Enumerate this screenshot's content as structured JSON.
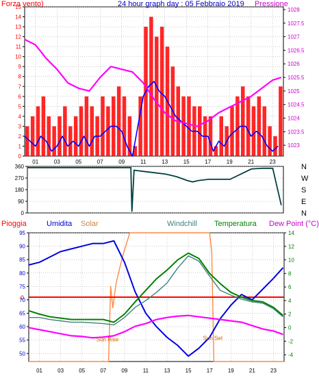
{
  "colors": {
    "wind": "#ff0000",
    "gust_line": "#0000ff",
    "pressure": "#ff00ff",
    "wind_dir": "#004040",
    "rain": "#ff0000",
    "humidity": "#0000dd",
    "solar": "#ff8844",
    "windchill": "#408080",
    "temperature": "#008000",
    "dewpoint": "#ff00ff",
    "zero_line": "#cc0000",
    "grid": "#999999",
    "frame": "#000000"
  },
  "header": {
    "left_label": "Forza vento)",
    "title": "24 hour graph day : 05 Febbraio 2019",
    "right_label": "Pressione"
  },
  "chart_data": [
    {
      "type": "bar",
      "title": "24 hour graph day : 05 Febbraio 2019",
      "x_ticks": [
        "01",
        "03",
        "05",
        "07",
        "09",
        "11",
        "13",
        "15",
        "17",
        "19",
        "21",
        "23"
      ],
      "xlim": [
        0,
        24
      ],
      "left_axis": {
        "label": "Forza vento)",
        "ylim": [
          0,
          15
        ],
        "ticks": [
          0,
          1,
          2,
          3,
          4,
          5,
          6,
          7,
          8,
          9,
          10,
          11,
          12,
          13,
          14,
          15
        ]
      },
      "right_axis": {
        "label": "Pressione",
        "ylim": [
          1022.6,
          1028.1
        ],
        "ticks": [
          1023,
          1023.5,
          1024,
          1024.5,
          1025,
          1025.5,
          1026,
          1026.5,
          1027,
          1027.5,
          1028
        ]
      },
      "series": [
        {
          "type": "bar",
          "axis": "left",
          "color_key": "wind",
          "x": [
            0,
            0.5,
            1,
            1.5,
            2,
            2.5,
            3,
            3.5,
            4,
            4.5,
            5,
            5.5,
            6,
            6.5,
            7,
            7.5,
            8,
            8.5,
            9,
            9.5,
            10,
            10.5,
            11,
            11.5,
            12,
            12.5,
            13,
            13.5,
            14,
            14.5,
            15,
            15.5,
            16,
            16.5,
            17,
            17.5,
            18,
            18.5,
            19,
            19.5,
            20,
            20.5,
            21,
            21.5,
            22,
            22.5,
            23,
            23.5
          ],
          "values": [
            3,
            4,
            5,
            6,
            4,
            3,
            4,
            5,
            3,
            4,
            5,
            6,
            5,
            4,
            6,
            5,
            6,
            7,
            6,
            4,
            1,
            6,
            13,
            14,
            12,
            13,
            11,
            9,
            7,
            6,
            6,
            5,
            5,
            4,
            4,
            1,
            4,
            3,
            5,
            6,
            7,
            6,
            5,
            6,
            5,
            3,
            2,
            7
          ]
        },
        {
          "type": "line",
          "axis": "left",
          "color_key": "gust_line",
          "x": [
            0,
            0.5,
            1,
            1.5,
            2,
            2.5,
            3,
            3.5,
            4,
            4.5,
            5,
            5.5,
            6,
            6.5,
            7,
            7.5,
            8,
            8.5,
            9,
            9.5,
            10,
            10.5,
            11,
            11.5,
            12,
            12.5,
            13,
            13.5,
            14,
            14.5,
            15,
            15.5,
            16,
            16.5,
            17,
            17.5,
            18,
            18.5,
            19,
            19.5,
            20,
            20.5,
            21,
            21.5,
            22,
            22.5,
            23,
            23.5
          ],
          "values": [
            2,
            1.5,
            1,
            2,
            1.5,
            0.5,
            1,
            2,
            1,
            1.5,
            1,
            2,
            1,
            2,
            2,
            2.5,
            3,
            3,
            2.5,
            1,
            0,
            3,
            6,
            7,
            7.5,
            6.5,
            6,
            5,
            4,
            3.5,
            3,
            2.5,
            2.5,
            2,
            2,
            0.5,
            1.5,
            1,
            2,
            2.5,
            3,
            3,
            2,
            2.5,
            2,
            1,
            0.5,
            1
          ]
        },
        {
          "type": "line",
          "axis": "right",
          "color_key": "pressure",
          "x": [
            0,
            1,
            2,
            3,
            4,
            5,
            6,
            7,
            8,
            9,
            10,
            11,
            12,
            13,
            14,
            15,
            16,
            17,
            18,
            19,
            20,
            21,
            22,
            23,
            23.8
          ],
          "values": [
            1026.9,
            1026.7,
            1026.2,
            1025.8,
            1025.3,
            1025.1,
            1025.0,
            1025.5,
            1025.9,
            1025.8,
            1025.7,
            1025.3,
            1024.7,
            1024.2,
            1023.9,
            1023.8,
            1023.7,
            1023.9,
            1024.2,
            1024.4,
            1024.6,
            1024.8,
            1025.1,
            1025.4,
            1025.5
          ]
        }
      ]
    },
    {
      "type": "line",
      "y_ticks": [
        0,
        90,
        180,
        270,
        360
      ],
      "ylim": [
        0,
        360
      ],
      "xlim": [
        0,
        24
      ],
      "compass": [
        "N",
        "W",
        "S",
        "E",
        "N"
      ],
      "series": [
        {
          "color_key": "wind_dir",
          "x": [
            0,
            9.6,
            9.7,
            9.8,
            10,
            11,
            12,
            13,
            14,
            15,
            15.5,
            16,
            17,
            18,
            19,
            20,
            21,
            22,
            23,
            23.8
          ],
          "values": [
            350,
            350,
            350,
            10,
            330,
            320,
            310,
            300,
            280,
            250,
            240,
            250,
            260,
            260,
            260,
            300,
            340,
            345,
            345,
            60
          ]
        }
      ]
    },
    {
      "type": "line",
      "x_ticks": [
        "01",
        "03",
        "05",
        "07",
        "09",
        "11",
        "13",
        "15",
        "17",
        "19",
        "21",
        "23"
      ],
      "xlim": [
        0,
        24
      ],
      "left_axis": {
        "label": "Umidita",
        "ylim": [
          47,
          95
        ],
        "ticks": [
          50,
          55,
          60,
          65,
          70,
          75,
          80,
          85,
          90,
          95
        ]
      },
      "right_axis": {
        "label": "Dew Point (°C)",
        "ylim": [
          -5,
          14
        ],
        "ticks": [
          -4,
          -2,
          0,
          2,
          4,
          6,
          8,
          10,
          12,
          14
        ]
      },
      "labels": {
        "rain": "Pioggia",
        "humidity": "Umidita",
        "solar": "Solar",
        "windchill": "Windchill",
        "temperature": "Temperatura",
        "dewpoint": "Dew Point (°C)",
        "rain_zero": "0",
        "sun_rise": "Sun Rise",
        "sun_set": "Sun Set"
      },
      "annotations": [
        {
          "text": "Sun Rise",
          "x": 7.4,
          "y": -2
        },
        {
          "text": "Sun Set",
          "x": 17.3,
          "y": -1.8
        }
      ],
      "series": [
        {
          "name": "Umidita",
          "axis": "left",
          "color_key": "humidity",
          "x": [
            0,
            1,
            2,
            3,
            4,
            5,
            6,
            7,
            8,
            9,
            10,
            11,
            12,
            13,
            14,
            15,
            16,
            17,
            18,
            19,
            20,
            21,
            22,
            23,
            23.9
          ],
          "values": [
            83,
            84,
            86,
            88,
            89,
            90,
            91,
            91,
            92,
            84,
            73,
            65,
            60,
            56,
            53,
            49,
            52,
            56,
            63,
            68,
            72,
            70,
            74,
            78,
            82
          ]
        },
        {
          "name": "Temperatura",
          "axis": "right",
          "color_key": "temperature",
          "x": [
            0,
            1,
            2,
            3,
            4,
            5,
            6,
            7,
            8,
            9,
            10,
            11,
            12,
            13,
            14,
            15,
            16,
            17,
            18,
            19,
            20,
            21,
            22,
            23,
            23.9
          ],
          "values": [
            2.5,
            2,
            1.6,
            1.4,
            1.2,
            1.2,
            1.2,
            1.2,
            0.8,
            2,
            3.8,
            5.5,
            7.2,
            8.5,
            10,
            11,
            10.2,
            8,
            6.5,
            5.2,
            4.5,
            4,
            3.8,
            3,
            1.8
          ]
        },
        {
          "name": "Windchill",
          "axis": "right",
          "color_key": "windchill",
          "x": [
            0,
            1,
            2,
            3,
            4,
            5,
            6,
            7,
            8,
            9,
            10,
            11,
            12,
            13,
            14,
            15,
            16,
            17,
            18,
            19,
            20,
            21,
            22,
            23,
            23.9
          ],
          "values": [
            1.5,
            1.5,
            1.2,
            1,
            0.8,
            0.8,
            0.7,
            0.6,
            0.4,
            1.5,
            3,
            4,
            5.2,
            6.6,
            8.8,
            10.6,
            9.8,
            7.6,
            5.5,
            4.8,
            4.2,
            3.8,
            3.6,
            2.8,
            1.6
          ]
        },
        {
          "name": "Dew Point",
          "axis": "right",
          "color_key": "dewpoint",
          "x": [
            0,
            1,
            2,
            3,
            4,
            5,
            6,
            7,
            8,
            9,
            10,
            11,
            12,
            13,
            14,
            15,
            16,
            17,
            18,
            19,
            20,
            21,
            22,
            23,
            23.9
          ],
          "values": [
            0,
            -0.3,
            -0.6,
            -0.9,
            -1.2,
            -1.3,
            -1.5,
            -1.4,
            -1.2,
            -0.6,
            0.2,
            0.6,
            1.2,
            1.5,
            1.7,
            1.8,
            1.6,
            1.4,
            1.2,
            1,
            0.8,
            0.3,
            -0.2,
            -0.5,
            -1
          ]
        },
        {
          "name": "Solar",
          "axis": "left",
          "color_key": "solar",
          "x": [
            0,
            7.5,
            7.7,
            7.9,
            8.2,
            8.8,
            9.5,
            10.5,
            11,
            12,
            13,
            14,
            15,
            16,
            17,
            17.2,
            17.4,
            24
          ],
          "values": [
            47,
            47,
            75,
            67,
            76,
            86,
            95,
            95,
            95,
            95,
            95,
            95,
            95,
            95,
            95,
            88,
            47,
            47
          ]
        },
        {
          "name": "Pioggia",
          "axis": "left",
          "color_key": "rain",
          "x": [
            0,
            24
          ],
          "values": [
            71,
            71
          ]
        }
      ]
    }
  ]
}
